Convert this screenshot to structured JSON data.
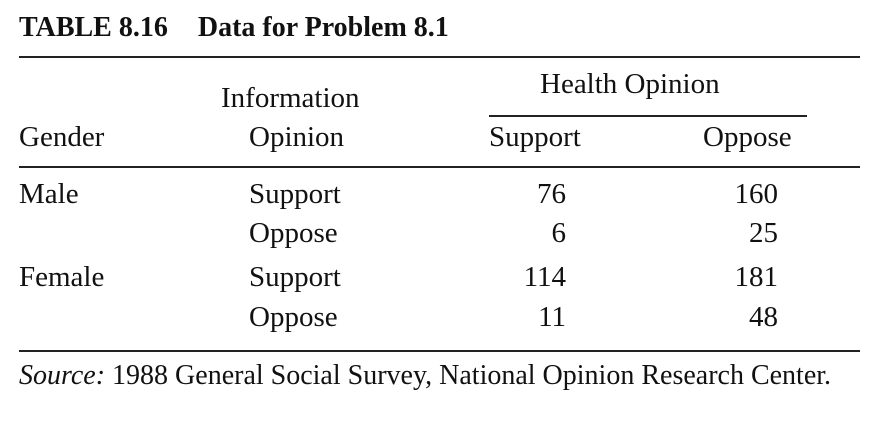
{
  "title": {
    "number": "TABLE 8.16",
    "text": "Data for Problem 8.1"
  },
  "headers": {
    "gender": "Gender",
    "information_line1": "Information",
    "information_line2": "Opinion",
    "health_opinion": "Health Opinion",
    "support": "Support",
    "oppose": "Oppose"
  },
  "rows": [
    {
      "gender": "Male",
      "info": "Support",
      "support": "76",
      "oppose": "160"
    },
    {
      "gender": "",
      "info": "Oppose",
      "support": "6",
      "oppose": "25"
    },
    {
      "gender": "Female",
      "info": "Support",
      "support": "114",
      "oppose": "181"
    },
    {
      "gender": "",
      "info": "Oppose",
      "support": "11",
      "oppose": "48"
    }
  ],
  "source": {
    "lead": "Source:",
    "text": "1988 General Social Survey, National Opinion Research Center."
  }
}
